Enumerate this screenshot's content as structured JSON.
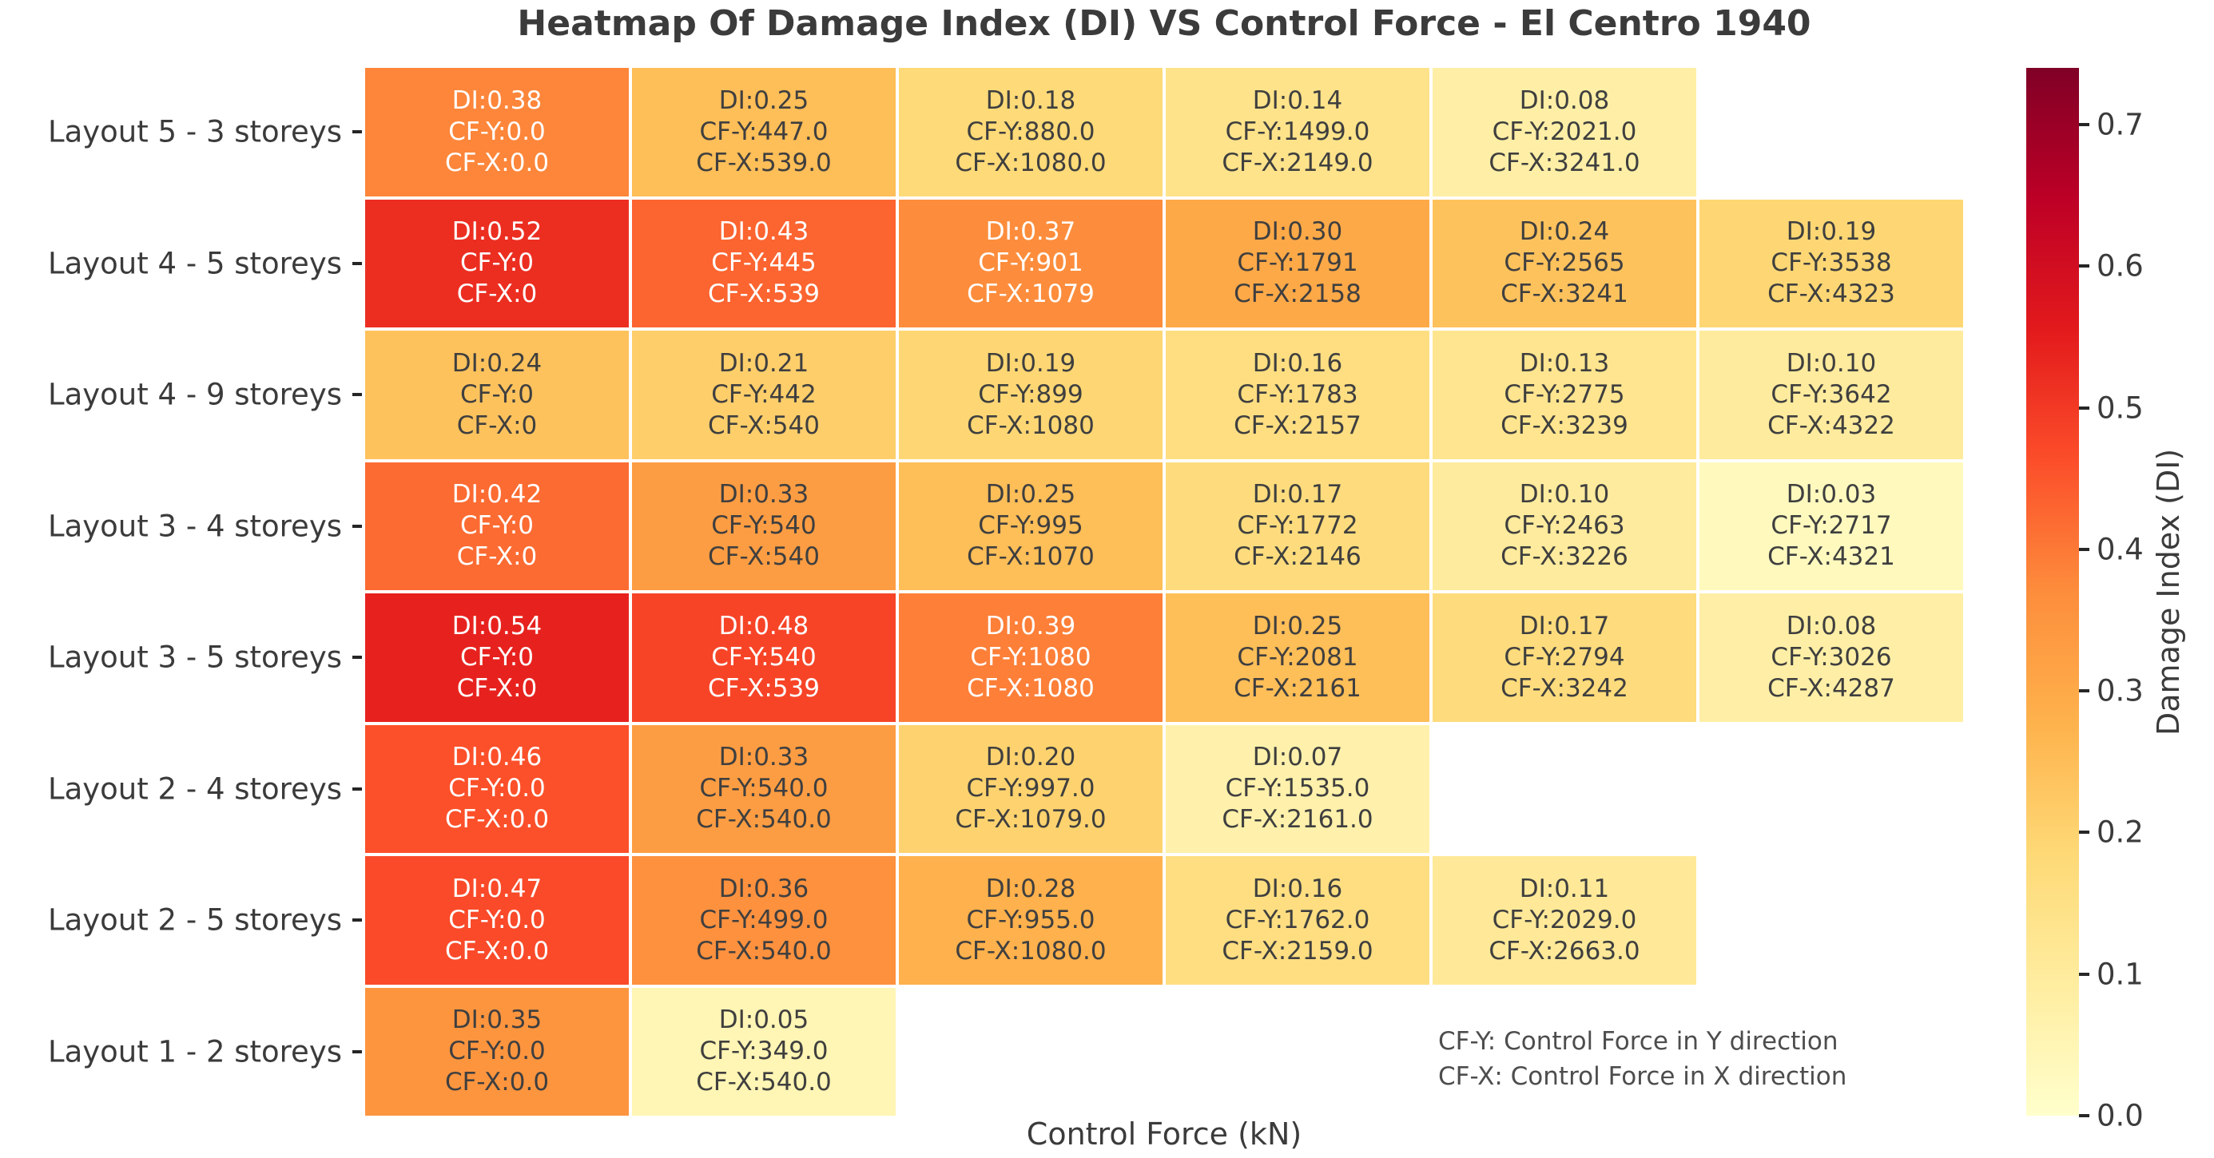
{
  "chart_data": {
    "type": "heatmap",
    "title": "Heatmap Of Damage Index (DI) VS Control Force - El Centro 1940",
    "xlabel": "Control Force (kN)",
    "annotation_lines": [
      "CF-Y: Control Force in Y direction",
      "CF-X: Control Force in X direction"
    ],
    "cell_prefixes": {
      "di": "DI:",
      "cfy": "CF-Y:",
      "cfx": "CF-X:"
    },
    "columns": 6,
    "colorbar": {
      "label": "Damage Index (DI)",
      "ticks": [
        "0.7",
        "0.6",
        "0.5",
        "0.4",
        "0.3",
        "0.2",
        "0.1",
        "0.0"
      ],
      "vmin": 0.0,
      "vmax": 0.74,
      "colormap": "YlOrRd"
    },
    "colors": {
      "text_dark": "#3f3f3f",
      "text_light": "#ffffff",
      "axis_text": "#3b3b3b",
      "colormap_stops": [
        "#ffffcc",
        "#ffeda0",
        "#fed976",
        "#feb24c",
        "#fd8d3c",
        "#fc4e2a",
        "#e31a1c",
        "#bd0026",
        "#800026"
      ]
    },
    "rows": [
      {
        "label": "Layout 5 - 3 storeys",
        "cells": [
          {
            "di": "0.38",
            "cfy": "0.0",
            "cfx": "0.0"
          },
          {
            "di": "0.25",
            "cfy": "447.0",
            "cfx": "539.0"
          },
          {
            "di": "0.18",
            "cfy": "880.0",
            "cfx": "1080.0"
          },
          {
            "di": "0.14",
            "cfy": "1499.0",
            "cfx": "2149.0"
          },
          {
            "di": "0.08",
            "cfy": "2021.0",
            "cfx": "3241.0"
          },
          null
        ]
      },
      {
        "label": "Layout 4 - 5 storeys",
        "cells": [
          {
            "di": "0.52",
            "cfy": "0",
            "cfx": "0"
          },
          {
            "di": "0.43",
            "cfy": "445",
            "cfx": "539"
          },
          {
            "di": "0.37",
            "cfy": "901",
            "cfx": "1079"
          },
          {
            "di": "0.30",
            "cfy": "1791",
            "cfx": "2158"
          },
          {
            "di": "0.24",
            "cfy": "2565",
            "cfx": "3241"
          },
          {
            "di": "0.19",
            "cfy": "3538",
            "cfx": "4323"
          }
        ]
      },
      {
        "label": "Layout 4 - 9 storeys",
        "cells": [
          {
            "di": "0.24",
            "cfy": "0",
            "cfx": "0"
          },
          {
            "di": "0.21",
            "cfy": "442",
            "cfx": "540"
          },
          {
            "di": "0.19",
            "cfy": "899",
            "cfx": "1080"
          },
          {
            "di": "0.16",
            "cfy": "1783",
            "cfx": "2157"
          },
          {
            "di": "0.13",
            "cfy": "2775",
            "cfx": "3239"
          },
          {
            "di": "0.10",
            "cfy": "3642",
            "cfx": "4322"
          }
        ]
      },
      {
        "label": "Layout 3 - 4 storeys",
        "cells": [
          {
            "di": "0.42",
            "cfy": "0",
            "cfx": "0"
          },
          {
            "di": "0.33",
            "cfy": "540",
            "cfx": "540"
          },
          {
            "di": "0.25",
            "cfy": "995",
            "cfx": "1070"
          },
          {
            "di": "0.17",
            "cfy": "1772",
            "cfx": "2146"
          },
          {
            "di": "0.10",
            "cfy": "2463",
            "cfx": "3226"
          },
          {
            "di": "0.03",
            "cfy": "2717",
            "cfx": "4321"
          }
        ]
      },
      {
        "label": "Layout 3 - 5 storeys",
        "cells": [
          {
            "di": "0.54",
            "cfy": "0",
            "cfx": "0"
          },
          {
            "di": "0.48",
            "cfy": "540",
            "cfx": "539"
          },
          {
            "di": "0.39",
            "cfy": "1080",
            "cfx": "1080"
          },
          {
            "di": "0.25",
            "cfy": "2081",
            "cfx": "2161"
          },
          {
            "di": "0.17",
            "cfy": "2794",
            "cfx": "3242"
          },
          {
            "di": "0.08",
            "cfy": "3026",
            "cfx": "4287"
          }
        ]
      },
      {
        "label": "Layout 2 - 4 storeys",
        "cells": [
          {
            "di": "0.46",
            "cfy": "0.0",
            "cfx": "0.0"
          },
          {
            "di": "0.33",
            "cfy": "540.0",
            "cfx": "540.0"
          },
          {
            "di": "0.20",
            "cfy": "997.0",
            "cfx": "1079.0"
          },
          {
            "di": "0.07",
            "cfy": "1535.0",
            "cfx": "2161.0"
          },
          null,
          null
        ]
      },
      {
        "label": "Layout 2 - 5 storeys",
        "cells": [
          {
            "di": "0.47",
            "cfy": "0.0",
            "cfx": "0.0"
          },
          {
            "di": "0.36",
            "cfy": "499.0",
            "cfx": "540.0"
          },
          {
            "di": "0.28",
            "cfy": "955.0",
            "cfx": "1080.0"
          },
          {
            "di": "0.16",
            "cfy": "1762.0",
            "cfx": "2159.0"
          },
          {
            "di": "0.11",
            "cfy": "2029.0",
            "cfx": "2663.0"
          },
          null
        ]
      },
      {
        "label": "Layout 1 - 2 storeys",
        "cells": [
          {
            "di": "0.35",
            "cfy": "0.0",
            "cfx": "0.0"
          },
          {
            "di": "0.05",
            "cfy": "349.0",
            "cfx": "540.0"
          },
          null,
          null,
          null,
          null
        ]
      }
    ]
  }
}
